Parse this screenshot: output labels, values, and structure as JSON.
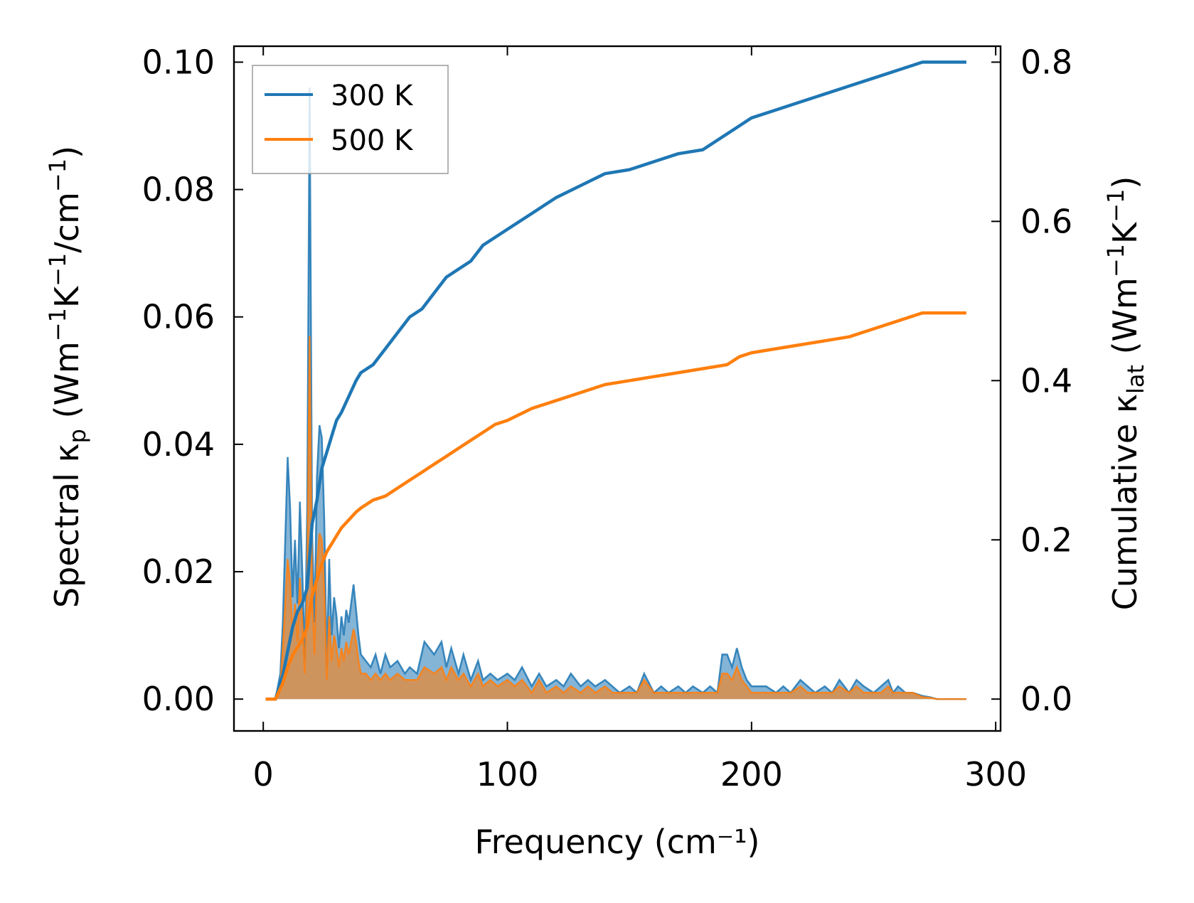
{
  "chart_data": {
    "type": "area",
    "xlabel": "Frequency (cm⁻¹)",
    "xlim": [
      -12,
      302
    ],
    "xticks": [
      0,
      100,
      200,
      300
    ],
    "xtick_labels": [
      "0",
      "100",
      "200",
      "300"
    ],
    "left_axis": {
      "ylabel_parts": [
        "Spectral κ",
        "p",
        " (Wm",
        "−1",
        "K",
        "−1",
        "/cm",
        "−1",
        ")"
      ],
      "ylim": [
        -0.005,
        0.1025
      ],
      "yticks": [
        0,
        0.02,
        0.04,
        0.06,
        0.08,
        0.1
      ],
      "ytick_labels": [
        "0.00",
        "0.02",
        "0.04",
        "0.06",
        "0.08",
        "0.10"
      ]
    },
    "right_axis": {
      "ylabel_parts": [
        "Cumulative κ",
        "lat",
        " (Wm",
        "−1",
        "K",
        "−1",
        ")"
      ],
      "ylim": [
        -0.04,
        0.82
      ],
      "yticks": [
        0,
        0.2,
        0.4,
        0.6,
        0.8
      ],
      "ytick_labels": [
        "0.0",
        "0.2",
        "0.4",
        "0.6",
        "0.8"
      ]
    },
    "legend": {
      "placement": "upper-left",
      "entries": [
        "300 K",
        "500 K"
      ]
    },
    "colors": {
      "300 K": "#1f77b4",
      "500 K": "#ff7f0e"
    },
    "spectral": [
      {
        "name": "300 K",
        "axis": "left",
        "x": [
          1,
          3,
          5,
          7,
          8,
          9,
          10,
          11,
          12,
          13,
          14,
          15,
          16,
          17,
          18,
          19,
          20,
          21,
          22,
          23,
          24,
          25,
          26,
          27,
          28,
          29,
          30,
          31,
          32,
          33,
          34,
          35,
          36,
          37,
          38,
          39,
          40,
          42,
          44,
          46,
          48,
          50,
          52,
          55,
          58,
          60,
          63,
          66,
          70,
          73,
          75,
          77,
          80,
          82,
          85,
          88,
          90,
          93,
          96,
          100,
          103,
          106,
          110,
          113,
          116,
          120,
          123,
          126,
          130,
          133,
          136,
          140,
          143,
          146,
          150,
          153,
          156,
          160,
          163,
          166,
          170,
          173,
          176,
          180,
          183,
          186,
          188,
          190,
          192,
          194,
          196,
          198,
          200,
          203,
          206,
          210,
          213,
          216,
          220,
          223,
          226,
          230,
          233,
          236,
          240,
          243,
          246,
          250,
          253,
          256,
          258,
          260,
          263,
          266,
          270,
          273,
          276,
          280,
          283,
          286,
          288
        ],
        "values": [
          0,
          0,
          0,
          0.004,
          0.012,
          0.025,
          0.038,
          0.03,
          0.016,
          0.025,
          0.015,
          0.031,
          0.02,
          0.006,
          0.03,
          0.096,
          0.026,
          0.012,
          0.035,
          0.043,
          0.041,
          0.028,
          0.005,
          0.022,
          0.01,
          0.016,
          0.013,
          0.008,
          0.013,
          0.01,
          0.014,
          0.012,
          0.015,
          0.018,
          0.014,
          0.01,
          0.007,
          0.006,
          0.005,
          0.007,
          0.004,
          0.007,
          0.005,
          0.006,
          0.004,
          0.005,
          0.004,
          0.009,
          0.007,
          0.009,
          0.005,
          0.008,
          0.004,
          0.007,
          0.003,
          0.006,
          0.003,
          0.004,
          0.003,
          0.004,
          0.003,
          0.005,
          0.002,
          0.004,
          0.002,
          0.003,
          0.002,
          0.004,
          0.002,
          0.003,
          0.002,
          0.003,
          0.002,
          0.001,
          0.002,
          0.001,
          0.004,
          0.001,
          0.002,
          0.001,
          0.002,
          0.001,
          0.002,
          0.001,
          0.002,
          0.001,
          0.007,
          0.007,
          0.005,
          0.008,
          0.005,
          0.003,
          0.002,
          0.002,
          0.002,
          0.001,
          0.002,
          0.001,
          0.003,
          0.002,
          0.001,
          0.002,
          0.001,
          0.003,
          0.001,
          0.003,
          0.002,
          0.001,
          0.002,
          0.003,
          0.001,
          0.002,
          0.001,
          0.001,
          0.0005,
          0.0003,
          0,
          0,
          0,
          0,
          0
        ]
      },
      {
        "name": "500 K",
        "axis": "left",
        "x": [
          1,
          3,
          5,
          7,
          8,
          9,
          10,
          11,
          12,
          13,
          14,
          15,
          16,
          17,
          18,
          19,
          20,
          21,
          22,
          23,
          24,
          25,
          26,
          27,
          28,
          29,
          30,
          31,
          32,
          33,
          34,
          35,
          36,
          37,
          38,
          39,
          40,
          42,
          44,
          46,
          48,
          50,
          52,
          55,
          58,
          60,
          63,
          66,
          70,
          73,
          75,
          77,
          80,
          82,
          85,
          88,
          90,
          93,
          96,
          100,
          103,
          106,
          110,
          113,
          116,
          120,
          123,
          126,
          130,
          133,
          136,
          140,
          143,
          146,
          150,
          153,
          156,
          160,
          163,
          166,
          170,
          173,
          176,
          180,
          183,
          186,
          188,
          190,
          192,
          194,
          196,
          198,
          200,
          203,
          206,
          210,
          213,
          216,
          220,
          223,
          226,
          230,
          233,
          236,
          240,
          243,
          246,
          250,
          253,
          256,
          258,
          260,
          263,
          266,
          270,
          273,
          276,
          280,
          283,
          286,
          288
        ],
        "values": [
          0,
          0,
          0,
          0.002,
          0.008,
          0.015,
          0.022,
          0.018,
          0.01,
          0.015,
          0.009,
          0.019,
          0.012,
          0.004,
          0.018,
          0.057,
          0.016,
          0.007,
          0.021,
          0.026,
          0.025,
          0.017,
          0.003,
          0.013,
          0.006,
          0.01,
          0.008,
          0.005,
          0.008,
          0.006,
          0.009,
          0.007,
          0.009,
          0.011,
          0.009,
          0.006,
          0.004,
          0.004,
          0.003,
          0.004,
          0.003,
          0.004,
          0.003,
          0.004,
          0.003,
          0.003,
          0.003,
          0.005,
          0.004,
          0.005,
          0.003,
          0.005,
          0.003,
          0.004,
          0.002,
          0.004,
          0.002,
          0.003,
          0.002,
          0.003,
          0.002,
          0.003,
          0.001,
          0.003,
          0.001,
          0.002,
          0.001,
          0.002,
          0.001,
          0.002,
          0.001,
          0.002,
          0.001,
          0.001,
          0.001,
          0.001,
          0.003,
          0.001,
          0.001,
          0.001,
          0.001,
          0.001,
          0.001,
          0.001,
          0.001,
          0.001,
          0.004,
          0.004,
          0.003,
          0.005,
          0.003,
          0.002,
          0.001,
          0.001,
          0.001,
          0.001,
          0.001,
          0.001,
          0.002,
          0.001,
          0.001,
          0.001,
          0.001,
          0.002,
          0.001,
          0.002,
          0.001,
          0.001,
          0.001,
          0.002,
          0.001,
          0.001,
          0.001,
          0.001,
          0.0003,
          0.0002,
          0,
          0,
          0,
          0,
          0
        ]
      }
    ],
    "cumulative": [
      {
        "name": "300 K",
        "axis": "right",
        "x": [
          1,
          5,
          8,
          10,
          12,
          14,
          16,
          18,
          19,
          20,
          22,
          24,
          26,
          28,
          30,
          32,
          35,
          38,
          40,
          45,
          50,
          55,
          60,
          65,
          70,
          75,
          80,
          85,
          90,
          95,
          100,
          110,
          120,
          130,
          140,
          150,
          160,
          170,
          180,
          190,
          195,
          200,
          210,
          220,
          230,
          240,
          250,
          260,
          265,
          270,
          280,
          288
        ],
        "values": [
          0,
          0,
          0.03,
          0.06,
          0.09,
          0.11,
          0.12,
          0.14,
          0.18,
          0.22,
          0.25,
          0.29,
          0.31,
          0.33,
          0.35,
          0.36,
          0.38,
          0.4,
          0.41,
          0.42,
          0.44,
          0.46,
          0.48,
          0.49,
          0.51,
          0.53,
          0.54,
          0.55,
          0.57,
          0.58,
          0.59,
          0.61,
          0.63,
          0.645,
          0.66,
          0.665,
          0.675,
          0.685,
          0.69,
          0.71,
          0.72,
          0.73,
          0.74,
          0.75,
          0.76,
          0.77,
          0.78,
          0.79,
          0.795,
          0.8,
          0.8,
          0.8
        ]
      },
      {
        "name": "500 K",
        "axis": "right",
        "x": [
          1,
          5,
          8,
          10,
          12,
          14,
          16,
          18,
          19,
          20,
          22,
          24,
          26,
          28,
          30,
          32,
          35,
          38,
          40,
          45,
          50,
          55,
          60,
          65,
          70,
          75,
          80,
          85,
          90,
          95,
          100,
          110,
          120,
          130,
          140,
          150,
          160,
          170,
          180,
          190,
          195,
          200,
          210,
          220,
          230,
          240,
          250,
          260,
          265,
          270,
          280,
          288
        ],
        "values": [
          0,
          0,
          0.02,
          0.04,
          0.055,
          0.065,
          0.075,
          0.09,
          0.11,
          0.13,
          0.15,
          0.17,
          0.185,
          0.195,
          0.205,
          0.215,
          0.225,
          0.235,
          0.24,
          0.25,
          0.255,
          0.265,
          0.275,
          0.285,
          0.295,
          0.305,
          0.315,
          0.325,
          0.335,
          0.345,
          0.35,
          0.365,
          0.375,
          0.385,
          0.395,
          0.4,
          0.405,
          0.41,
          0.415,
          0.42,
          0.43,
          0.435,
          0.44,
          0.445,
          0.45,
          0.455,
          0.465,
          0.475,
          0.48,
          0.485,
          0.485,
          0.485
        ]
      }
    ],
    "grid": false
  }
}
